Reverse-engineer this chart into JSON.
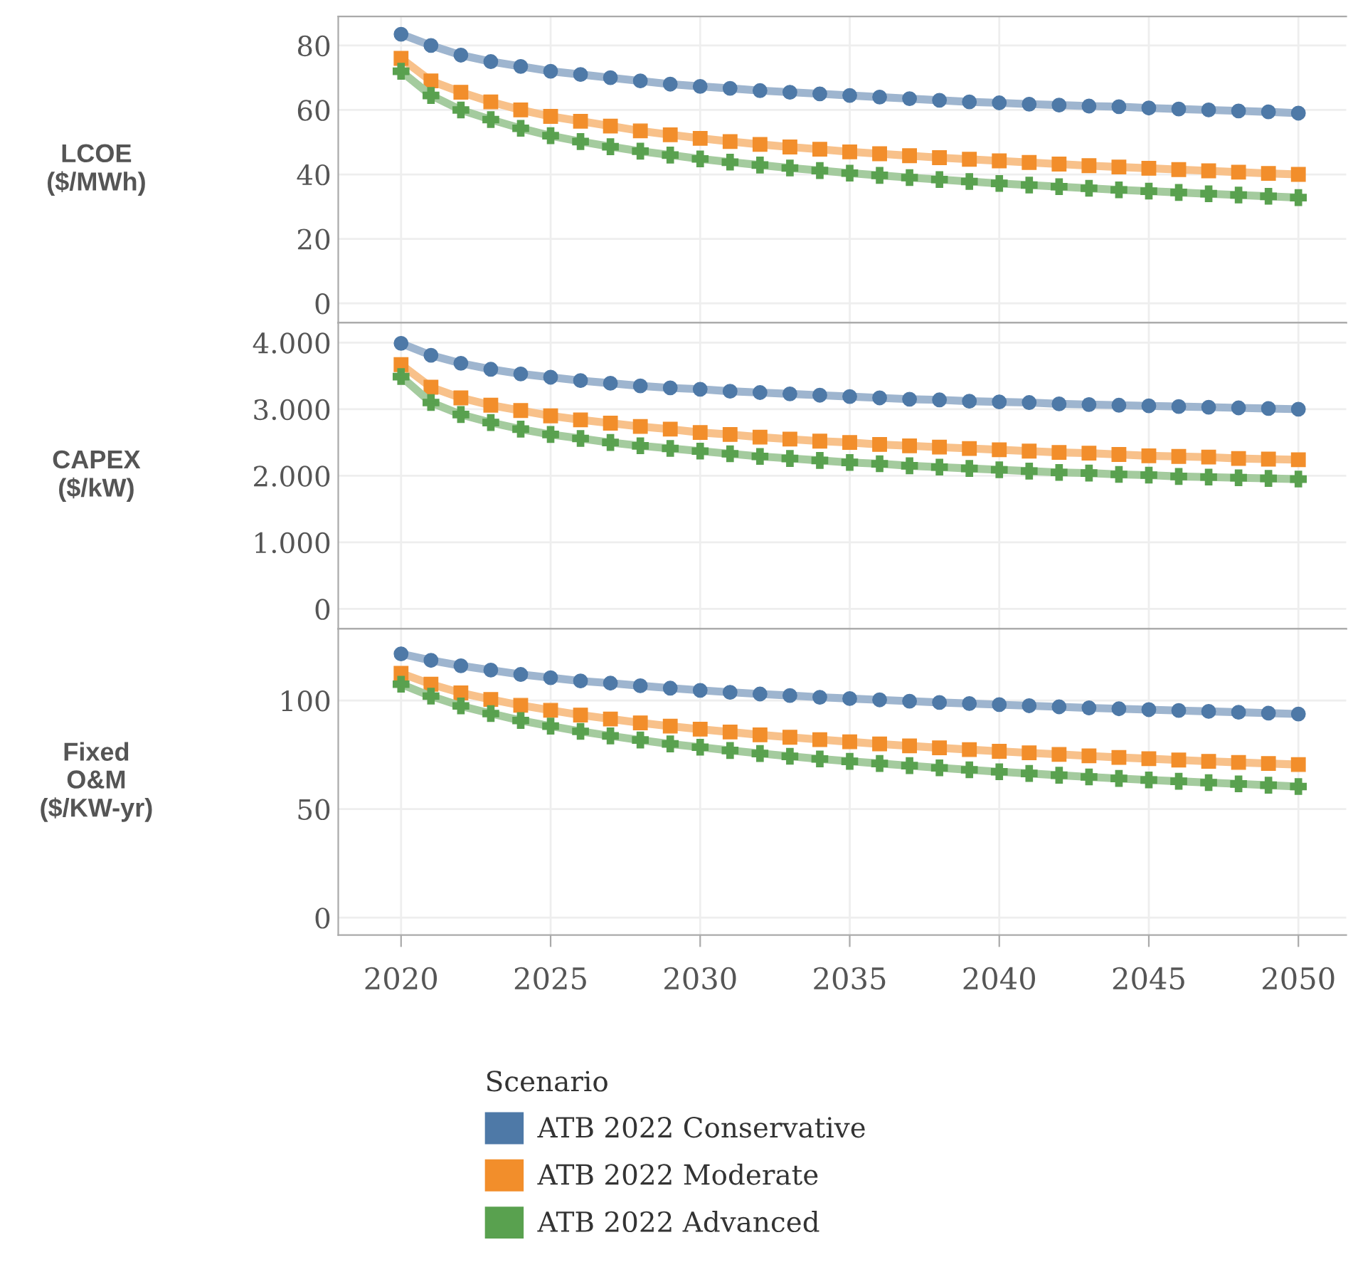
{
  "chart_data": [
    {
      "type": "line",
      "ylabel": "LCOE\n($/MWh)",
      "legend_title": "Scenario",
      "legend": "bottom",
      "x": [
        2020,
        2021,
        2022,
        2023,
        2024,
        2025,
        2026,
        2027,
        2028,
        2029,
        2030,
        2031,
        2032,
        2033,
        2034,
        2035,
        2036,
        2037,
        2038,
        2039,
        2040,
        2041,
        2042,
        2043,
        2044,
        2045,
        2046,
        2047,
        2048,
        2049,
        2050
      ],
      "xlim": [
        2017.9,
        2051.6
      ],
      "ylim": [
        -6,
        89
      ],
      "yticks": [
        0,
        20,
        40,
        60,
        80
      ],
      "grid": true,
      "tick_labels": "y",
      "series": [
        {
          "name": "ATB 2022 Conservative",
          "color": "#4e79a7",
          "marker": "circle",
          "values": [
            83.5,
            80,
            77,
            75,
            73.5,
            72,
            71,
            70,
            69,
            68,
            67.3,
            66.7,
            66,
            65.5,
            65,
            64.5,
            64,
            63.5,
            63,
            62.5,
            62.2,
            61.8,
            61.5,
            61.2,
            61,
            60.6,
            60.3,
            60,
            59.7,
            59.4,
            59
          ]
        },
        {
          "name": "ATB 2022 Moderate",
          "color": "#f28e2b",
          "marker": "square",
          "values": [
            76,
            69,
            65.5,
            62.5,
            60,
            58,
            56.5,
            55,
            53.5,
            52.3,
            51.2,
            50.2,
            49.3,
            48.5,
            47.8,
            47,
            46.4,
            45.8,
            45.2,
            44.7,
            44.2,
            43.7,
            43.2,
            42.7,
            42.3,
            41.9,
            41.5,
            41.1,
            40.7,
            40.3,
            40
          ]
        },
        {
          "name": "ATB 2022 Advanced",
          "color": "#59a14f",
          "marker": "cross",
          "values": [
            72,
            64.5,
            60,
            57,
            54.3,
            52,
            50.2,
            48.6,
            47.2,
            46,
            44.8,
            43.8,
            42.9,
            42,
            41.2,
            40.4,
            39.7,
            39,
            38.4,
            37.8,
            37.2,
            36.7,
            36.2,
            35.7,
            35.2,
            34.8,
            34.4,
            34,
            33.6,
            33.2,
            32.8
          ]
        }
      ]
    },
    {
      "type": "line",
      "ylabel": "CAPEX\n($/kW)",
      "x": [
        2020,
        2021,
        2022,
        2023,
        2024,
        2025,
        2026,
        2027,
        2028,
        2029,
        2030,
        2031,
        2032,
        2033,
        2034,
        2035,
        2036,
        2037,
        2038,
        2039,
        2040,
        2041,
        2042,
        2043,
        2044,
        2045,
        2046,
        2047,
        2048,
        2049,
        2050
      ],
      "xlim": [
        2017.9,
        2051.6
      ],
      "ylim": [
        -300,
        4300
      ],
      "yticks": [
        {
          "value": 0,
          "label": "0"
        },
        {
          "value": 1000,
          "label": "1.000"
        },
        {
          "value": 2000,
          "label": "2.000"
        },
        {
          "value": 3000,
          "label": "3.000"
        },
        {
          "value": 4000,
          "label": "4.000"
        }
      ],
      "grid": true,
      "tick_labels": "y",
      "series": [
        {
          "color": "#4e79a7",
          "marker": "circle",
          "values": [
            3990,
            3810,
            3690,
            3600,
            3530,
            3480,
            3430,
            3390,
            3350,
            3320,
            3300,
            3270,
            3250,
            3230,
            3210,
            3190,
            3170,
            3150,
            3140,
            3120,
            3110,
            3100,
            3080,
            3070,
            3060,
            3050,
            3040,
            3030,
            3020,
            3010,
            3000
          ]
        },
        {
          "color": "#f28e2b",
          "marker": "square",
          "values": [
            3670,
            3330,
            3170,
            3060,
            2980,
            2900,
            2840,
            2790,
            2740,
            2700,
            2650,
            2620,
            2580,
            2550,
            2520,
            2500,
            2470,
            2450,
            2430,
            2410,
            2390,
            2370,
            2350,
            2340,
            2320,
            2300,
            2290,
            2280,
            2260,
            2250,
            2240
          ]
        },
        {
          "color": "#59a14f",
          "marker": "cross",
          "values": [
            3490,
            3100,
            2920,
            2800,
            2700,
            2620,
            2560,
            2500,
            2450,
            2410,
            2370,
            2330,
            2290,
            2260,
            2230,
            2200,
            2180,
            2150,
            2130,
            2110,
            2090,
            2070,
            2050,
            2040,
            2020,
            2010,
            1990,
            1980,
            1970,
            1960,
            1950
          ]
        }
      ]
    },
    {
      "type": "line",
      "ylabel": "Fixed\nO&M\n($/KW-yr)",
      "x": [
        2020,
        2021,
        2022,
        2023,
        2024,
        2025,
        2026,
        2027,
        2028,
        2029,
        2030,
        2031,
        2032,
        2033,
        2034,
        2035,
        2036,
        2037,
        2038,
        2039,
        2040,
        2041,
        2042,
        2043,
        2044,
        2045,
        2046,
        2047,
        2048,
        2049,
        2050
      ],
      "xlim": [
        2017.9,
        2051.6
      ],
      "xticks": [
        2020,
        2025,
        2030,
        2035,
        2040,
        2045,
        2050
      ],
      "ylim": [
        -8,
        133
      ],
      "yticks": [
        0,
        50,
        100
      ],
      "grid": true,
      "series": [
        {
          "color": "#4e79a7",
          "marker": "circle",
          "values": [
            121.5,
            118.5,
            116,
            114,
            112,
            110.5,
            109,
            108,
            106.8,
            105.7,
            104.7,
            103.8,
            103,
            102.3,
            101.5,
            100.9,
            100.3,
            99.7,
            99.1,
            98.6,
            98.1,
            97.6,
            97.1,
            96.6,
            96.2,
            95.8,
            95.4,
            95,
            94.6,
            94.2,
            93.8
          ]
        },
        {
          "color": "#f28e2b",
          "marker": "square",
          "values": [
            112.5,
            107.5,
            103.5,
            100.5,
            97.8,
            95.5,
            93.3,
            91.5,
            89.7,
            88.2,
            86.8,
            85.5,
            84.2,
            83.1,
            82,
            81,
            80,
            79.1,
            78.2,
            77.4,
            76.6,
            75.9,
            75.2,
            74.5,
            73.8,
            73.2,
            72.6,
            72,
            71.5,
            71,
            70.5
          ]
        },
        {
          "color": "#59a14f",
          "marker": "cross",
          "values": [
            107.5,
            102,
            97.5,
            94,
            90.8,
            88.2,
            85.8,
            83.7,
            81.8,
            80,
            78.5,
            77,
            75.6,
            74.3,
            73.1,
            72,
            71,
            70,
            69,
            68.1,
            67.2,
            66.4,
            65.6,
            64.8,
            64.1,
            63.4,
            62.8,
            62.2,
            61.6,
            61,
            60.4
          ]
        }
      ]
    }
  ]
}
